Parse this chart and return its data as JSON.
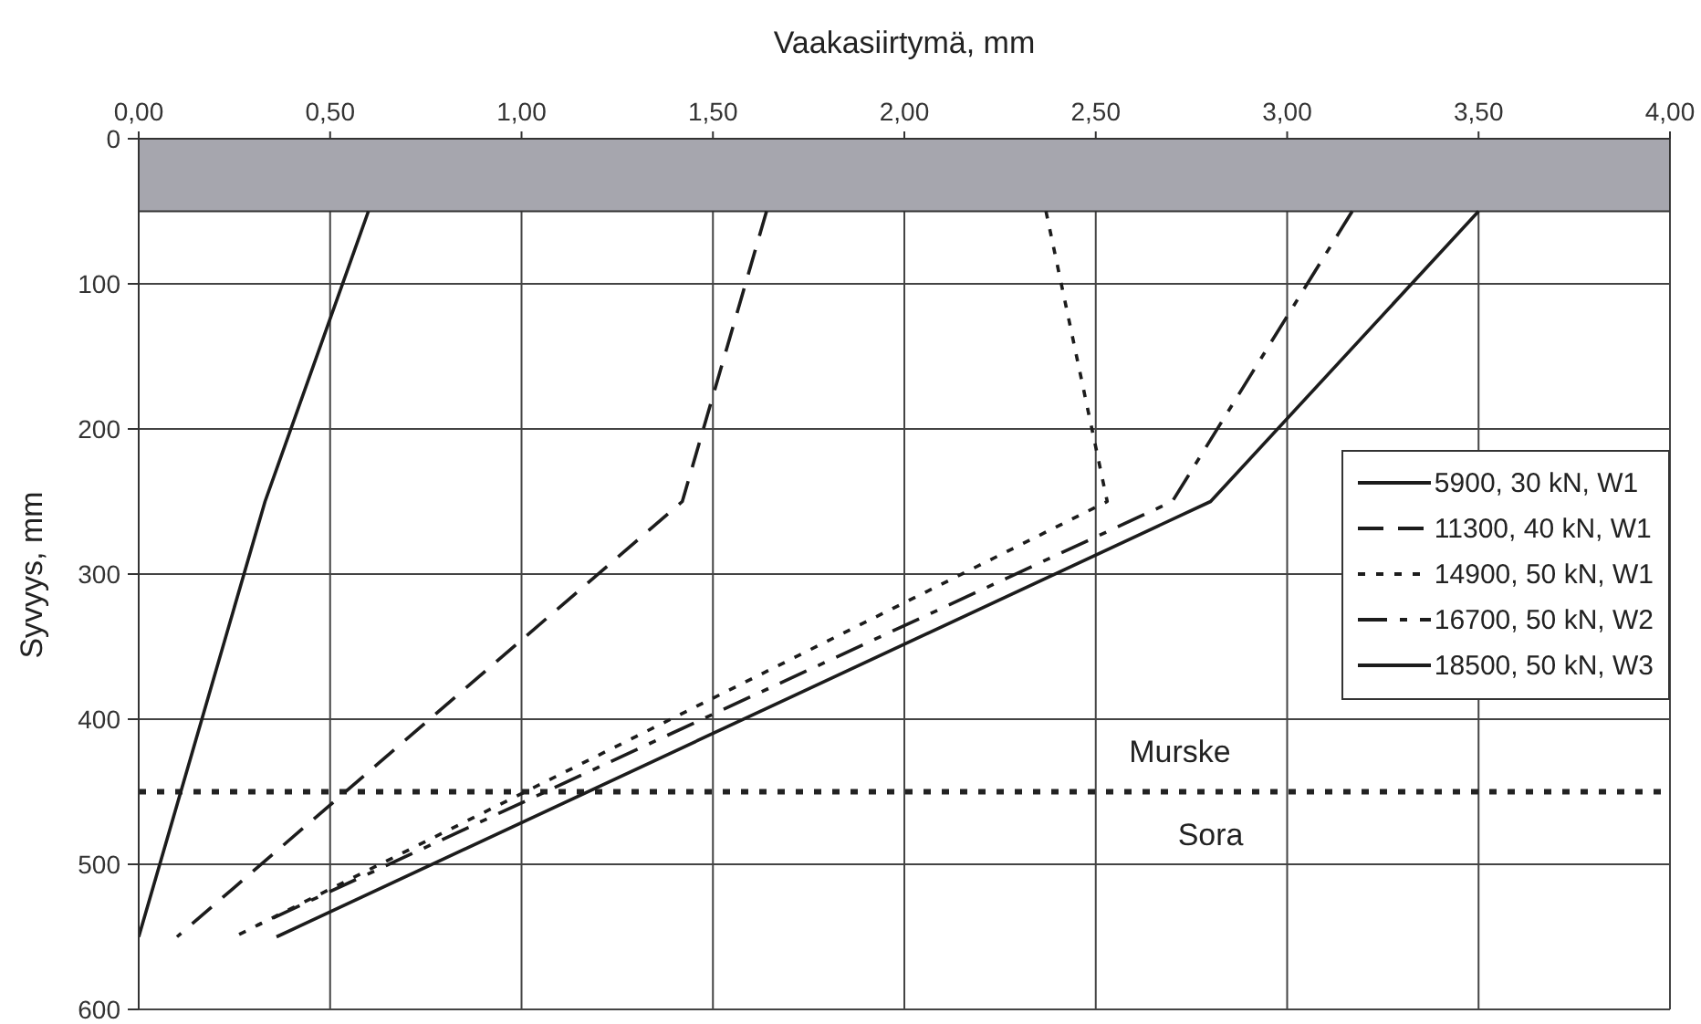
{
  "chart_data": {
    "type": "line",
    "xlabel": "Vaakasiirtymä, mm",
    "ylabel": "Syvyys, mm",
    "xlim": [
      0,
      4
    ],
    "xticks": [
      {
        "value": 0,
        "label": "0,00"
      },
      {
        "value": 0.5,
        "label": "0,50"
      },
      {
        "value": 1,
        "label": "1,00"
      },
      {
        "value": 1.5,
        "label": "1,50"
      },
      {
        "value": 2,
        "label": "2,00"
      },
      {
        "value": 2.5,
        "label": "2,50"
      },
      {
        "value": 3,
        "label": "3,00"
      },
      {
        "value": 3.5,
        "label": "3,50"
      },
      {
        "value": 4,
        "label": "4,00"
      }
    ],
    "ylim": [
      600,
      0
    ],
    "yticks": [
      0,
      100,
      200,
      300,
      400,
      500,
      600
    ],
    "grid": true,
    "legend": "right",
    "series": [
      {
        "name": "5900, 30 kN, W1",
        "color": "#1c1c1c",
        "line_style": "solid",
        "x": [
          0.6,
          0.33,
          0
        ],
        "values": [
          50,
          250,
          550
        ]
      },
      {
        "name": "11300, 40 kN, W1",
        "color": "#1c1c1c",
        "line_style": "dashed",
        "x": [
          1.64,
          1.42,
          0.1
        ],
        "values": [
          50,
          250,
          550
        ]
      },
      {
        "name": "14900, 50 kN, W1",
        "color": "#1c1c1c",
        "line_style": "dotted",
        "x": [
          2.37,
          2.53,
          0.25
        ],
        "values": [
          50,
          250,
          550
        ]
      },
      {
        "name": "16700, 50 kN, W2",
        "color": "#1c1c1c",
        "line_style": "dashdot",
        "x": [
          3.17,
          2.7,
          0.31
        ],
        "values": [
          50,
          250,
          542
        ]
      },
      {
        "name": "18500, 50 kN, W3",
        "color": "#1c1c1c",
        "line_style": "solid",
        "x": [
          3.5,
          2.8,
          0.36
        ],
        "values": [
          50,
          250,
          550
        ]
      }
    ],
    "bands": [
      {
        "axis": "y",
        "from": 0,
        "to": 50,
        "color": "#a6a6ae"
      }
    ],
    "ref_lines": [
      {
        "axis": "y",
        "value": 450,
        "label": "Murske",
        "color": "#222222",
        "line_style": "dotted"
      }
    ],
    "annotations": [
      "Sora"
    ]
  }
}
